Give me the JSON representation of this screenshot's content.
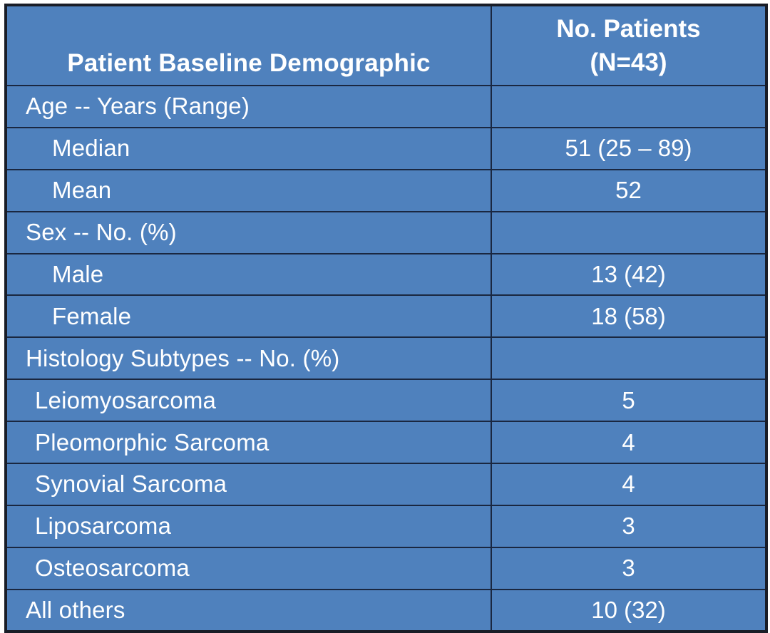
{
  "colors": {
    "cell_fill": "#4f81bd",
    "grid_line": "#1a2740",
    "outer_border": "#191d27",
    "text": "#ffffff",
    "page_background": "#ffffff"
  },
  "chart_data": {
    "type": "table",
    "title": "Patient Baseline Demographic",
    "columns": [
      "Patient Baseline Demographic",
      "No. Patients (N=43)"
    ],
    "header_col2_lines": [
      "No. Patients",
      "(N=43)"
    ],
    "n_total": 43,
    "rows": [
      {
        "label": "Age -- Years (Range)",
        "value": "",
        "indent": 0
      },
      {
        "label": "Median",
        "value": "51 (25 – 89)",
        "indent": 2
      },
      {
        "label": "Mean",
        "value": "52",
        "indent": 2
      },
      {
        "label": "Sex -- No. (%)",
        "value": "",
        "indent": 0
      },
      {
        "label": "Male",
        "value": "13 (42)",
        "indent": 2
      },
      {
        "label": "Female",
        "value": "18 (58)",
        "indent": 2
      },
      {
        "label": "Histology Subtypes -- No. (%)",
        "value": "",
        "indent": 0
      },
      {
        "label": "Leiomyosarcoma",
        "value": "5",
        "indent": 1
      },
      {
        "label": "Pleomorphic Sarcoma",
        "value": "4",
        "indent": 1
      },
      {
        "label": "Synovial Sarcoma",
        "value": "4",
        "indent": 1
      },
      {
        "label": "Liposarcoma",
        "value": "3",
        "indent": 1
      },
      {
        "label": "Osteosarcoma",
        "value": "3",
        "indent": 1
      },
      {
        "label": "All others",
        "value": "10 (32)",
        "indent": 0
      }
    ]
  }
}
